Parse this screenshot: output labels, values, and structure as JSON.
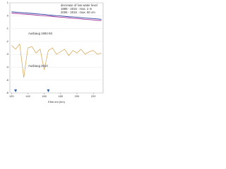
{
  "chart_data": {
    "type": "line",
    "x_label": "Elbe-km (km)",
    "x": [
      120,
      125,
      130,
      135,
      140,
      145,
      150,
      155,
      160,
      165,
      170,
      175,
      180,
      185,
      190,
      195,
      200,
      205,
      210,
      215,
      220,
      225,
      230
    ],
    "series": [
      {
        "color": "#2b3f9e",
        "values": [
          0.3,
          0.28,
          0.25,
          0.22,
          0.2,
          0.18,
          0.15,
          0.12,
          0.1,
          0.06,
          0.03,
          0.0,
          -0.02,
          -0.05,
          -0.08,
          -0.1,
          -0.12,
          -0.15,
          -0.18,
          -0.2,
          -0.22,
          -0.25,
          -0.28
        ]
      },
      {
        "color": "#a0309a",
        "values": [
          0.2,
          0.18,
          0.15,
          0.12,
          0.1,
          0.08,
          0.05,
          0.02,
          0.0,
          -0.03,
          -0.06,
          -0.09,
          -0.12,
          -0.14,
          -0.17,
          -0.2,
          -0.22,
          -0.25,
          -0.28,
          -0.3,
          -0.33,
          -0.36,
          -0.38
        ]
      },
      {
        "color": "#d4a04a",
        "values": [
          -2.3,
          -2.6,
          -2.2,
          -4.8,
          -2.5,
          -2.4,
          -2.9,
          -2.6,
          -4.2,
          -2.7,
          -2.5,
          -3.0,
          -2.8,
          -2.6,
          -3.1,
          -2.7,
          -2.9,
          -2.6,
          -3.0,
          -2.8,
          -2.7,
          -3.0,
          -2.9
        ]
      }
    ],
    "annotations": [
      {
        "text": "decrease of low water level",
        "color": "#222"
      },
      {
        "text": "1988 - 2015 : max. 2 m",
        "color": "#222"
      },
      {
        "text": "2006 - 2015 : max. 50 cm",
        "color": "#222"
      },
      {
        "text": "Ausbaug 1992-93",
        "color": "#d4a04a"
      },
      {
        "text": "Ausbaug 2010",
        "color": "#d4a04a"
      }
    ],
    "markers": [
      125,
      165
    ],
    "xlim": [
      118,
      232
    ],
    "xticks": [
      120,
      140,
      160,
      180,
      200,
      220
    ],
    "ylim": [
      -6,
      1
    ],
    "yticks": [
      -6,
      -5,
      -4,
      -3,
      -2,
      -1,
      0,
      1
    ],
    "grid": true
  }
}
